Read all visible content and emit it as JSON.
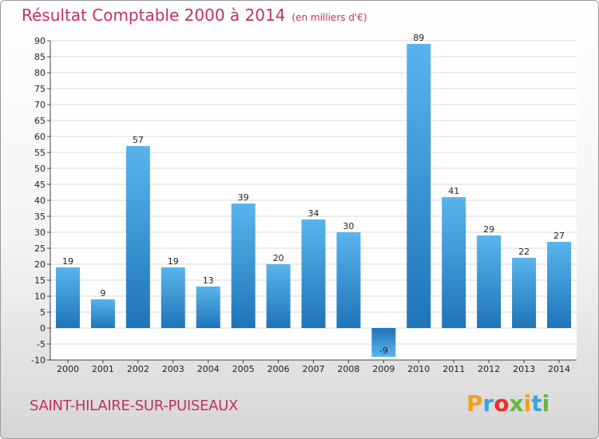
{
  "title": "Résultat Comptable 2000 à 2014",
  "units": "(en milliers d'€)",
  "commune": "SAINT-HILAIRE-SUR-PUISEAUX",
  "logo": {
    "letters": [
      "P",
      "r",
      "o",
      "x",
      "i",
      "t",
      "i"
    ],
    "colors": [
      "#f2a11b",
      "#3aa3dd",
      "#e8302b",
      "#67b83a",
      "#f2a11b",
      "#3aa3dd",
      "#67b83a"
    ]
  },
  "colors": {
    "bar_light": "#5ab4ec",
    "bar_dark": "#1f74b8",
    "grid": "#d8d8d8",
    "axis": "#444444"
  },
  "chart_data": {
    "type": "bar",
    "title": "Résultat Comptable 2000 à 2014",
    "ylabel": "en milliers d'€",
    "categories": [
      "2000",
      "2001",
      "2002",
      "2003",
      "2004",
      "2005",
      "2006",
      "2007",
      "2008",
      "2009",
      "2010",
      "2011",
      "2012",
      "2013",
      "2014"
    ],
    "values": [
      19,
      9,
      57,
      19,
      13,
      39,
      20,
      34,
      30,
      -9,
      89,
      41,
      29,
      22,
      27
    ],
    "labels": [
      "19",
      "9",
      "57",
      "19",
      "13",
      "39",
      "20",
      "34",
      "30",
      "-9",
      "89",
      "41",
      "29",
      "22",
      "27"
    ],
    "ylim": [
      -10,
      90
    ],
    "yticks": [
      -10,
      -5,
      0,
      5,
      10,
      15,
      20,
      25,
      30,
      35,
      40,
      45,
      50,
      55,
      60,
      65,
      70,
      75,
      80,
      85,
      90
    ],
    "grid": true
  }
}
